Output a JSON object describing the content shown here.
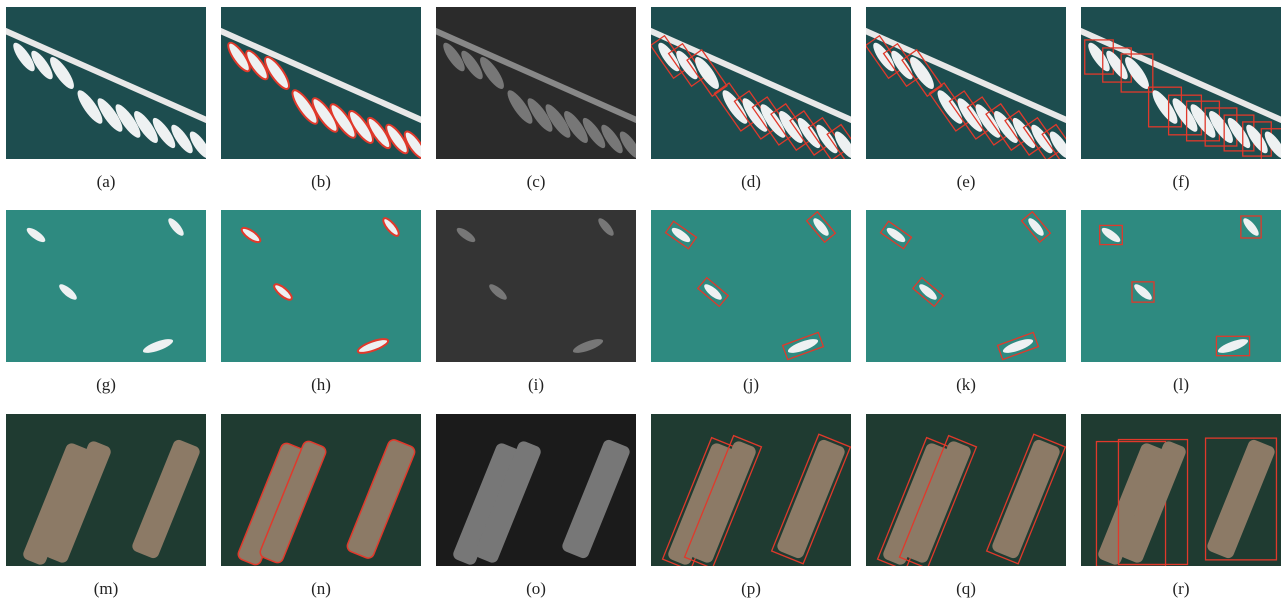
{
  "figure": {
    "panels": [
      {
        "caption": "(a)"
      },
      {
        "caption": "(b)"
      },
      {
        "caption": "(c)"
      },
      {
        "caption": "(d)"
      },
      {
        "caption": "(e)"
      },
      {
        "caption": "(f)"
      },
      {
        "caption": "(g)"
      },
      {
        "caption": "(h)"
      },
      {
        "caption": "(i)"
      },
      {
        "caption": "(j)"
      },
      {
        "caption": "(k)"
      },
      {
        "caption": "(l)"
      },
      {
        "caption": "(m)"
      },
      {
        "caption": "(n)"
      },
      {
        "caption": "(o)"
      },
      {
        "caption": "(p)"
      },
      {
        "caption": "(q)"
      },
      {
        "caption": "(r)"
      }
    ]
  }
}
